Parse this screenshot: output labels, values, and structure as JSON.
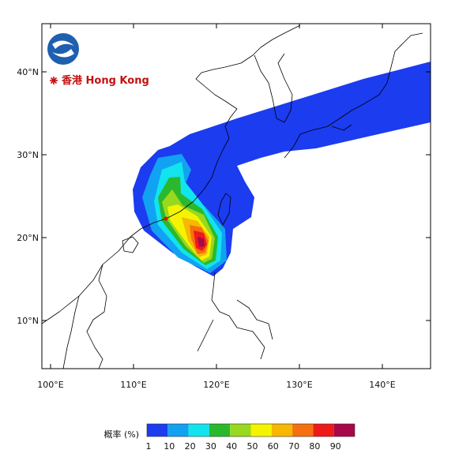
{
  "map": {
    "logo_text": "香港 Hong Kong",
    "lon_ticks": [
      {
        "value": 100,
        "label": "100°E"
      },
      {
        "value": 110,
        "label": "110°E"
      },
      {
        "value": 120,
        "label": "120°E"
      },
      {
        "value": 130,
        "label": "130°E"
      },
      {
        "value": 140,
        "label": "140°E"
      }
    ],
    "lat_ticks": [
      {
        "value": 10,
        "label": "10°N"
      },
      {
        "value": 20,
        "label": "20°N"
      },
      {
        "value": 30,
        "label": "30°N"
      },
      {
        "value": 40,
        "label": "40°N"
      }
    ],
    "colorbar": {
      "label": "概率 (%)",
      "levels": [
        1,
        10,
        20,
        30,
        40,
        50,
        60,
        70,
        80,
        90
      ],
      "colors": [
        "#1c3cf0",
        "#12a2f2",
        "#12e4ee",
        "#2cb82c",
        "#98d81e",
        "#f4f400",
        "#f6b800",
        "#f5700f",
        "#ee1a1a",
        "#a8084a"
      ]
    }
  }
}
